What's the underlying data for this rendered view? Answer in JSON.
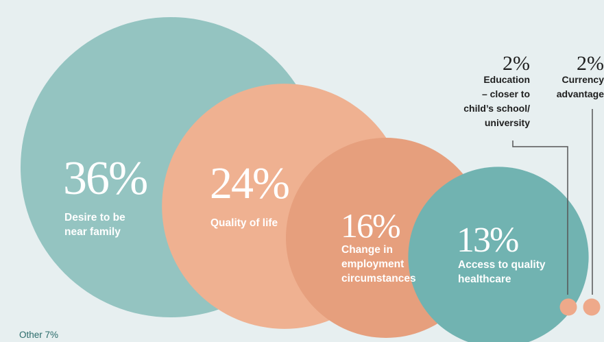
{
  "chart_data": {
    "type": "bubble",
    "unit": "%",
    "colors": {
      "teal_large": "#94c4c1",
      "peach": "#efb191",
      "salmon": "#e69f7d",
      "teal_dark": "#71b3b1",
      "small_dot": "#eea98a",
      "connector": "#555555",
      "other_text": "#2a6b6a"
    },
    "items": [
      {
        "label": "Desire to be\nnear family",
        "value": 36,
        "display": "36%"
      },
      {
        "label": "Quality of life",
        "value": 24,
        "display": "24%"
      },
      {
        "label": "Change in\nemployment\ncircumstances",
        "value": 16,
        "display": "16%"
      },
      {
        "label": "Access to quality\nhealthcare",
        "value": 13,
        "display": "13%"
      },
      {
        "label": "Education\n– closer to\nchild’s school/\nuniversity",
        "value": 2,
        "display": "2%"
      },
      {
        "label": "Currency\nadvantage",
        "value": 2,
        "display": "2%"
      }
    ],
    "other": {
      "label": "Other 7%",
      "value": 7
    }
  }
}
